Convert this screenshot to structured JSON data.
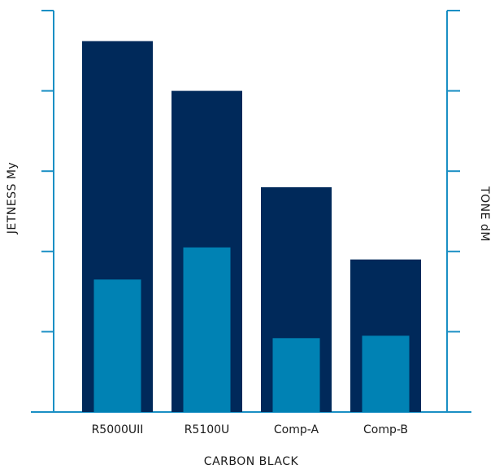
{
  "chart_data": {
    "type": "bar",
    "categories": [
      "R5000UII",
      "R5100U",
      "Comp-A",
      "Comp-B"
    ],
    "series": [
      {
        "name": "JETNESS My",
        "axis": "left",
        "values": [
          4.62,
          4.0,
          2.8,
          1.9
        ]
      },
      {
        "name": "TONE dM",
        "axis": "right",
        "values": [
          1.65,
          2.05,
          0.92,
          0.95
        ]
      }
    ],
    "xlabel": "CARBON BLACK",
    "ylabel_left": "JETNESS My",
    "ylabel_right": "TONE dM",
    "ylim_left": [
      0,
      5
    ],
    "ylim_right": [
      0,
      5
    ],
    "grid": false,
    "colors": {
      "primary": "#00295a",
      "secondary": "#0082b4",
      "axis": "#1a8fc4",
      "text": "#1a1a1a"
    }
  }
}
